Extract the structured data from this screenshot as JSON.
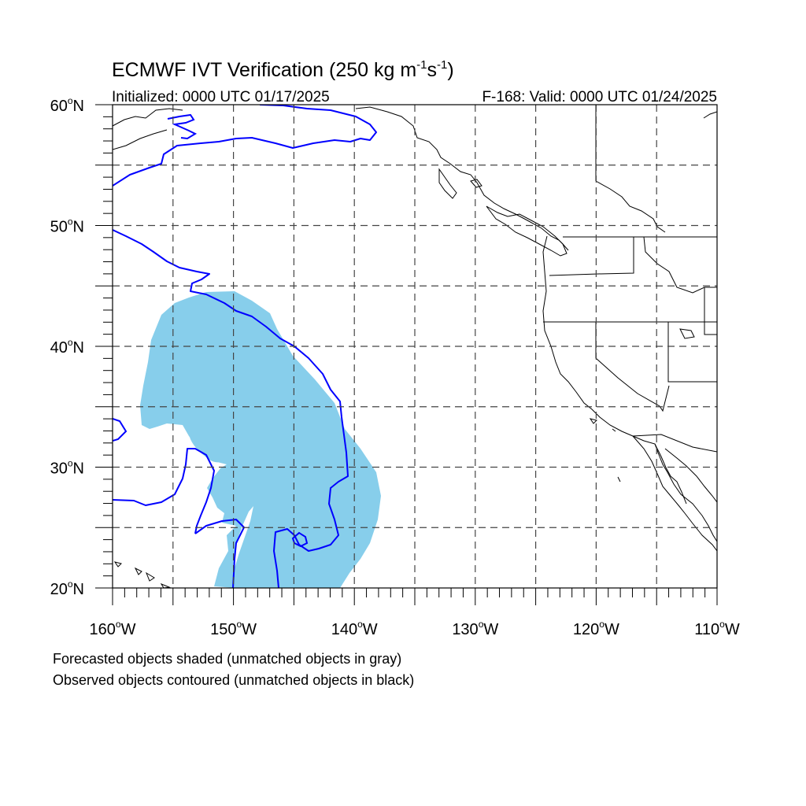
{
  "title": {
    "main": "ECMWF IVT Verification (250 kg m",
    "sup1": "-1",
    "mid": "s",
    "sup2": "-1",
    "close": ")"
  },
  "initialized": "Initialized: 0000 UTC 01/17/2025",
  "valid": "F-168: Valid: 0000 UTC 01/24/2025",
  "map": {
    "lon_range": [
      -160,
      -110
    ],
    "lat_range": [
      20,
      60
    ],
    "lat_ticks": [
      {
        "lat": 60,
        "deg": "60",
        "hem": "N"
      },
      {
        "lat": 50,
        "deg": "50",
        "hem": "N"
      },
      {
        "lat": 40,
        "deg": "40",
        "hem": "N"
      },
      {
        "lat": 30,
        "deg": "30",
        "hem": "N"
      },
      {
        "lat": 20,
        "deg": "20",
        "hem": "N"
      }
    ],
    "lon_ticks": [
      {
        "lon": -160,
        "deg": "160",
        "hem": "W"
      },
      {
        "lon": -150,
        "deg": "150",
        "hem": "W"
      },
      {
        "lon": -140,
        "deg": "140",
        "hem": "W"
      },
      {
        "lon": -130,
        "deg": "130",
        "hem": "W"
      },
      {
        "lon": -120,
        "deg": "120",
        "hem": "W"
      },
      {
        "lon": -110,
        "deg": "110",
        "hem": "W"
      }
    ],
    "grid_spacing_deg": 5,
    "forecast_color": "#87ceeb",
    "observed_color": "#0000ff",
    "coast_color": "#000000"
  },
  "notes": [
    "Forecasted objects shaded (unmatched objects in gray)",
    "Observed objects contoured (unmatched objects in black)"
  ]
}
